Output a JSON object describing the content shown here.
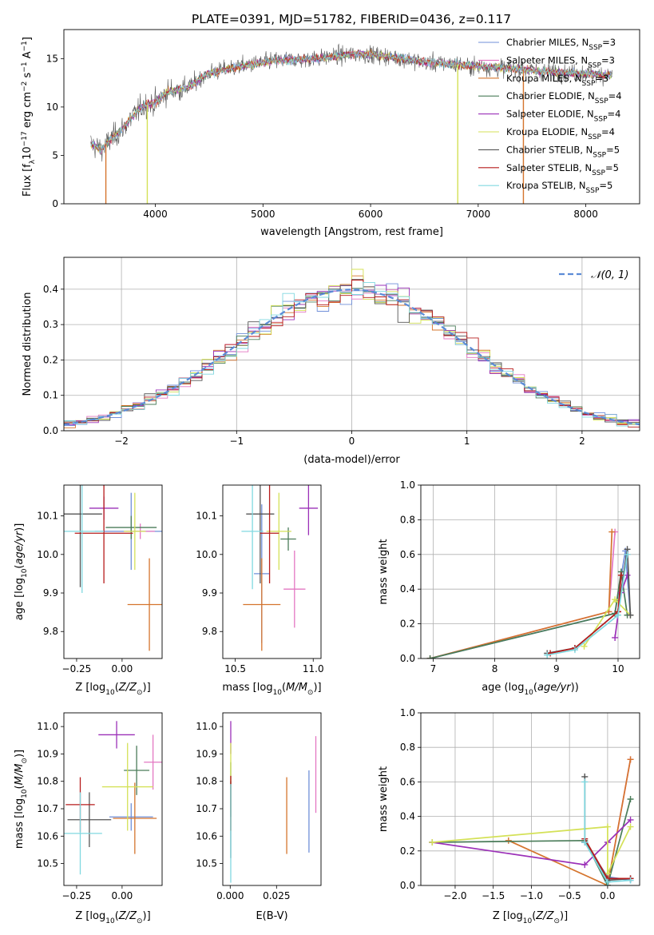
{
  "title": "PLATE=0391, MJD=51782, FIBERID=0436, z=0.117",
  "colors": {
    "Chabrier MILES": "#6f8fd8",
    "Salpeter MILES": "#e377c2",
    "Kroupa MILES": "#d5742d",
    "Chabrier ELODIE": "#4a7c59",
    "Salpeter ELODIE": "#9b30b8",
    "Kroupa ELODIE": "#d4e157",
    "Chabrier STELIB": "#555555",
    "Salpeter STELIB": "#b71c1c",
    "Kroupa STELIB": "#80d8e0"
  },
  "legend": {
    "entries": [
      "Chabrier MILES, N",
      "Salpeter MILES, N",
      "Kroupa MILES, N",
      "Chabrier ELODIE, N",
      "Salpeter ELODIE, N",
      "Kroupa ELODIE, N",
      "Chabrier STELIB, N",
      "Salpeter STELIB, N",
      "Kroupa STELIB, N"
    ],
    "sub": "SSP",
    "counts": [
      "=3",
      "=3",
      "=3",
      "=4",
      "=4",
      "=4",
      "=5",
      "=5",
      "=5"
    ]
  },
  "hist_legend": "𝒩(0, 1)",
  "chart_data": [
    {
      "id": "spectrum",
      "type": "line",
      "xlabel": "wavelength [Angstrom, rest frame]",
      "ylabel": "Flux [f_λ 10^-17 erg cm^-2 s^-1 A^-1]",
      "xlim": [
        3150,
        8500
      ],
      "ylim": [
        0,
        18
      ],
      "xticks": [
        4000,
        5000,
        6000,
        7000,
        8000
      ],
      "yticks": [
        0,
        5,
        10,
        15
      ],
      "x_range": [
        3400,
        8250
      ],
      "continuum": [
        [
          3400,
          6.2
        ],
        [
          3500,
          5.6
        ],
        [
          3600,
          6.8
        ],
        [
          3700,
          7.8
        ],
        [
          3800,
          9.2
        ],
        [
          3900,
          10.2
        ],
        [
          4000,
          10.4
        ],
        [
          4100,
          11.5
        ],
        [
          4200,
          11.8
        ],
        [
          4300,
          12.0
        ],
        [
          4400,
          12.8
        ],
        [
          4500,
          13.5
        ],
        [
          4700,
          14.0
        ],
        [
          4900,
          14.4
        ],
        [
          5100,
          14.8
        ],
        [
          5300,
          14.9
        ],
        [
          5500,
          15.0
        ],
        [
          5700,
          15.3
        ],
        [
          5900,
          15.5
        ],
        [
          6100,
          15.3
        ],
        [
          6300,
          15.0
        ],
        [
          6500,
          14.6
        ],
        [
          6700,
          14.5
        ],
        [
          6900,
          14.3
        ],
        [
          7100,
          14.1
        ],
        [
          7300,
          14.0
        ],
        [
          7500,
          13.8
        ],
        [
          7700,
          13.6
        ],
        [
          7900,
          13.5
        ],
        [
          8250,
          13.3
        ]
      ],
      "dips": [
        3540,
        3925,
        6810,
        7420
      ]
    },
    {
      "id": "residual_hist",
      "type": "bar",
      "xlabel": "(data-model)/error",
      "ylabel": "Normed distribution",
      "xlim": [
        -2.5,
        2.5
      ],
      "ylim": [
        0,
        0.49
      ],
      "xticks": [
        -2,
        -1,
        0,
        1,
        2
      ],
      "yticks": [
        0.0,
        0.1,
        0.2,
        0.3,
        0.4
      ],
      "bin_width": 0.1,
      "reference": "normal(0,1)"
    },
    {
      "id": "age_vs_Z",
      "type": "scatter",
      "xlabel": "Z [log10(Z/Z⊙)]",
      "ylabel": "age [log10(age/yr)]",
      "xlim": [
        -0.32,
        0.22
      ],
      "ylim": [
        9.73,
        10.18
      ],
      "xticks": [
        -0.25,
        0.0
      ],
      "yticks": [
        9.8,
        9.9,
        10.0,
        10.1
      ],
      "points": [
        {
          "model": "Chabrier MILES",
          "x": 0.05,
          "xerr": 0.2,
          "y": 10.06,
          "yerr": 0.1
        },
        {
          "model": "Salpeter MILES",
          "x": 0.1,
          "xerr": 0.08,
          "y": 10.06,
          "yerr": 0.02
        },
        {
          "model": "Kroupa MILES",
          "x": 0.15,
          "xerr": 0.12,
          "y": 9.87,
          "yerr": 0.12
        },
        {
          "model": "Chabrier ELODIE",
          "x": 0.05,
          "xerr": 0.14,
          "y": 10.07,
          "yerr": 0.03
        },
        {
          "model": "Salpeter ELODIE",
          "x": -0.1,
          "xerr": 0.08,
          "y": 10.12,
          "yerr": 0.03
        },
        {
          "model": "Kroupa ELODIE",
          "x": 0.07,
          "xerr": 0.06,
          "y": 10.06,
          "yerr": 0.1
        },
        {
          "model": "Chabrier STELIB",
          "x": -0.23,
          "xerr": 0.12,
          "y": 10.105,
          "yerr": 0.19
        },
        {
          "model": "Salpeter STELIB",
          "x": -0.1,
          "xerr": 0.16,
          "y": 10.055,
          "yerr": 0.13
        },
        {
          "model": "Kroupa STELIB",
          "x": -0.22,
          "xerr": 0.12,
          "y": 10.06,
          "yerr": 0.16
        }
      ]
    },
    {
      "id": "age_vs_mass",
      "type": "scatter",
      "xlabel": "mass [log10(M/M⊙)]",
      "ylabel": "",
      "xlim": [
        10.42,
        11.05
      ],
      "ylim": [
        9.73,
        10.18
      ],
      "xticks": [
        10.5,
        11.0
      ],
      "yticks": [
        9.8,
        9.9,
        10.0,
        10.1
      ],
      "points": [
        {
          "model": "Chabrier MILES",
          "x": 10.67,
          "xerr": 0.05,
          "y": 9.95,
          "yerr": 0.18
        },
        {
          "model": "Salpeter MILES",
          "x": 10.88,
          "xerr": 0.07,
          "y": 9.91,
          "yerr": 0.1
        },
        {
          "model": "Kroupa MILES",
          "x": 10.67,
          "xerr": 0.12,
          "y": 9.87,
          "yerr": 0.12
        },
        {
          "model": "Chabrier ELODIE",
          "x": 10.84,
          "xerr": 0.05,
          "y": 10.04,
          "yerr": 0.03
        },
        {
          "model": "Salpeter ELODIE",
          "x": 10.97,
          "xerr": 0.06,
          "y": 10.12,
          "yerr": 0.07
        },
        {
          "model": "Kroupa ELODIE",
          "x": 10.78,
          "xerr": 0.08,
          "y": 10.06,
          "yerr": 0.1
        },
        {
          "model": "Chabrier STELIB",
          "x": 10.66,
          "xerr": 0.09,
          "y": 10.105,
          "yerr": 0.18
        },
        {
          "model": "Salpeter STELIB",
          "x": 10.72,
          "xerr": 0.06,
          "y": 10.055,
          "yerr": 0.13
        },
        {
          "model": "Kroupa STELIB",
          "x": 10.61,
          "xerr": 0.07,
          "y": 10.06,
          "yerr": 0.15
        }
      ]
    },
    {
      "id": "weight_vs_age",
      "type": "line",
      "xlabel": "age (log10(age/yr))",
      "ylabel": "mass weight",
      "xlim": [
        6.8,
        10.35
      ],
      "ylim": [
        0,
        1.0
      ],
      "xticks": [
        7,
        8,
        9,
        10
      ],
      "yticks": [
        0.0,
        0.2,
        0.4,
        0.6,
        0.8,
        1.0
      ],
      "series": [
        {
          "model": "Chabrier MILES",
          "points": [
            [
              6.95,
              0.0
            ],
            [
              9.95,
              0.26
            ],
            [
              10.12,
              0.62
            ],
            [
              10.2,
              0.25
            ]
          ]
        },
        {
          "model": "Salpeter MILES",
          "points": [
            [
              6.95,
              0.0
            ],
            [
              9.85,
              0.27
            ],
            [
              9.95,
              0.73
            ]
          ]
        },
        {
          "model": "Kroupa MILES",
          "points": [
            [
              6.95,
              0.0
            ],
            [
              9.85,
              0.27
            ],
            [
              9.9,
              0.73
            ]
          ]
        },
        {
          "model": "Chabrier ELODIE",
          "points": [
            [
              6.95,
              0.0
            ],
            [
              9.95,
              0.26
            ],
            [
              10.05,
              0.5
            ],
            [
              10.15,
              0.25
            ]
          ]
        },
        {
          "model": "Salpeter ELODIE",
          "points": [
            [
              9.95,
              0.12
            ],
            [
              10.05,
              0.38
            ],
            [
              10.15,
              0.48
            ]
          ]
        },
        {
          "model": "Kroupa ELODIE",
          "points": [
            [
              9.45,
              0.07
            ],
            [
              9.95,
              0.34
            ],
            [
              10.2,
              0.25
            ]
          ]
        },
        {
          "model": "Chabrier STELIB",
          "points": [
            [
              8.85,
              0.03
            ],
            [
              9.3,
              0.06
            ],
            [
              10.0,
              0.27
            ],
            [
              10.15,
              0.63
            ],
            [
              10.2,
              0.25
            ]
          ]
        },
        {
          "model": "Salpeter STELIB",
          "points": [
            [
              8.9,
              0.03
            ],
            [
              9.3,
              0.06
            ],
            [
              10.0,
              0.27
            ],
            [
              10.05,
              0.48
            ]
          ]
        },
        {
          "model": "Kroupa STELIB",
          "points": [
            [
              8.85,
              0.02
            ],
            [
              9.3,
              0.05
            ],
            [
              10.0,
              0.25
            ],
            [
              10.15,
              0.6
            ]
          ]
        }
      ]
    },
    {
      "id": "mass_vs_Z",
      "type": "scatter",
      "xlabel": "Z [log10(Z/Z⊙)]",
      "ylabel": "mass [log10(M/M⊙)]",
      "xlim": [
        -0.32,
        0.22
      ],
      "ylim": [
        10.42,
        11.05
      ],
      "xticks": [
        -0.25,
        0.0
      ],
      "yticks": [
        10.5,
        10.6,
        10.7,
        10.8,
        10.9,
        11.0
      ],
      "points": [
        {
          "model": "Chabrier MILES",
          "x": 0.05,
          "xerr": 0.12,
          "y": 10.67,
          "yerr": 0.05
        },
        {
          "model": "Salpeter MILES",
          "x": 0.17,
          "xerr": 0.05,
          "y": 10.87,
          "yerr": 0.1
        },
        {
          "model": "Kroupa MILES",
          "x": 0.07,
          "xerr": 0.12,
          "y": 10.665,
          "yerr": 0.13
        },
        {
          "model": "Chabrier ELODIE",
          "x": 0.08,
          "xerr": 0.07,
          "y": 10.84,
          "yerr": 0.09
        },
        {
          "model": "Salpeter ELODIE",
          "x": -0.03,
          "xerr": 0.1,
          "y": 10.97,
          "yerr": 0.05
        },
        {
          "model": "Kroupa ELODIE",
          "x": 0.03,
          "xerr": 0.14,
          "y": 10.78,
          "yerr": 0.16
        },
        {
          "model": "Chabrier STELIB",
          "x": -0.18,
          "xerr": 0.12,
          "y": 10.66,
          "yerr": 0.1
        },
        {
          "model": "Salpeter STELIB",
          "x": -0.23,
          "xerr": 0.08,
          "y": 10.715,
          "yerr": 0.1
        },
        {
          "model": "Kroupa STELIB",
          "x": -0.23,
          "xerr": 0.12,
          "y": 10.61,
          "yerr": 0.15
        }
      ]
    },
    {
      "id": "mass_vs_EBV",
      "type": "scatter",
      "xlabel": "E(B-V)",
      "ylabel": "",
      "xlim": [
        -0.004,
        0.049
      ],
      "ylim": [
        10.42,
        11.05
      ],
      "xticks": [
        0.0,
        0.025
      ],
      "yticks": [
        10.5,
        10.6,
        10.7,
        10.8,
        10.9,
        11.0
      ],
      "xtick_labels": [
        "0.000",
        "0.025"
      ],
      "points": [
        {
          "model": "Chabrier MILES",
          "x": 0.0425,
          "xerr": 0,
          "y": 10.69,
          "yerr": 0.15
        },
        {
          "model": "Salpeter MILES",
          "x": 0.0462,
          "xerr": 0,
          "y": 10.825,
          "yerr": 0.14
        },
        {
          "model": "Kroupa MILES",
          "x": 0.0305,
          "xerr": 0,
          "y": 10.675,
          "yerr": 0.14
        },
        {
          "model": "Chabrier ELODIE",
          "x": 0.0003,
          "xerr": 0,
          "y": 10.77,
          "yerr": 0.1
        },
        {
          "model": "Salpeter ELODIE",
          "x": 0.0003,
          "xerr": 0,
          "y": 10.96,
          "yerr": 0.06
        },
        {
          "model": "Kroupa ELODIE",
          "x": 0.0003,
          "xerr": 0,
          "y": 10.78,
          "yerr": 0.16
        },
        {
          "model": "Chabrier STELIB",
          "x": 0.0003,
          "xerr": 0,
          "y": 10.66,
          "yerr": 0.14
        },
        {
          "model": "Salpeter STELIB",
          "x": 0.0003,
          "xerr": 0,
          "y": 10.72,
          "yerr": 0.1
        },
        {
          "model": "Kroupa STELIB",
          "x": 0.0003,
          "xerr": 0,
          "y": 10.61,
          "yerr": 0.18
        }
      ]
    },
    {
      "id": "weight_vs_Z",
      "type": "line",
      "xlabel": "Z [log10(Z/Z⊙)]",
      "ylabel": "mass weight",
      "xlim": [
        -2.45,
        0.42
      ],
      "ylim": [
        0,
        1.0
      ],
      "xticks": [
        -2.0,
        -1.5,
        -1.0,
        -0.5,
        0.0
      ],
      "yticks": [
        0.0,
        0.2,
        0.4,
        0.6,
        0.8,
        1.0
      ],
      "series": [
        {
          "model": "Chabrier MILES",
          "points": [
            [
              -0.3,
              0.25
            ],
            [
              0.0,
              0.05
            ],
            [
              0.3,
              0.03
            ]
          ]
        },
        {
          "model": "Salpeter MILES",
          "points": [
            [
              0.0,
              0.0
            ],
            [
              0.3,
              0.73
            ]
          ]
        },
        {
          "model": "Kroupa MILES",
          "points": [
            [
              -1.3,
              0.26
            ],
            [
              0.0,
              0.0
            ],
            [
              0.3,
              0.73
            ]
          ]
        },
        {
          "model": "Chabrier ELODIE",
          "points": [
            [
              -2.3,
              0.25
            ],
            [
              -0.3,
              0.26
            ],
            [
              0.0,
              0.0
            ],
            [
              0.3,
              0.5
            ]
          ]
        },
        {
          "model": "Salpeter ELODIE",
          "points": [
            [
              -2.3,
              0.25
            ],
            [
              -0.3,
              0.12
            ],
            [
              0.0,
              0.25
            ],
            [
              0.3,
              0.38
            ]
          ]
        },
        {
          "model": "Kroupa ELODIE",
          "points": [
            [
              -2.3,
              0.25
            ],
            [
              0.0,
              0.34
            ],
            [
              0.0,
              0.07
            ],
            [
              0.3,
              0.34
            ]
          ]
        },
        {
          "model": "Chabrier STELIB",
          "points": [
            [
              -0.3,
              0.63
            ],
            [
              -0.3,
              0.25
            ],
            [
              0.0,
              0.03
            ],
            [
              0.3,
              0.04
            ]
          ]
        },
        {
          "model": "Salpeter STELIB",
          "points": [
            [
              -0.3,
              0.27
            ],
            [
              0.0,
              0.04
            ],
            [
              0.3,
              0.04
            ]
          ]
        },
        {
          "model": "Kroupa STELIB",
          "points": [
            [
              -0.3,
              0.6
            ],
            [
              -0.3,
              0.25
            ],
            [
              0.0,
              0.02
            ],
            [
              0.3,
              0.03
            ]
          ]
        }
      ]
    }
  ]
}
